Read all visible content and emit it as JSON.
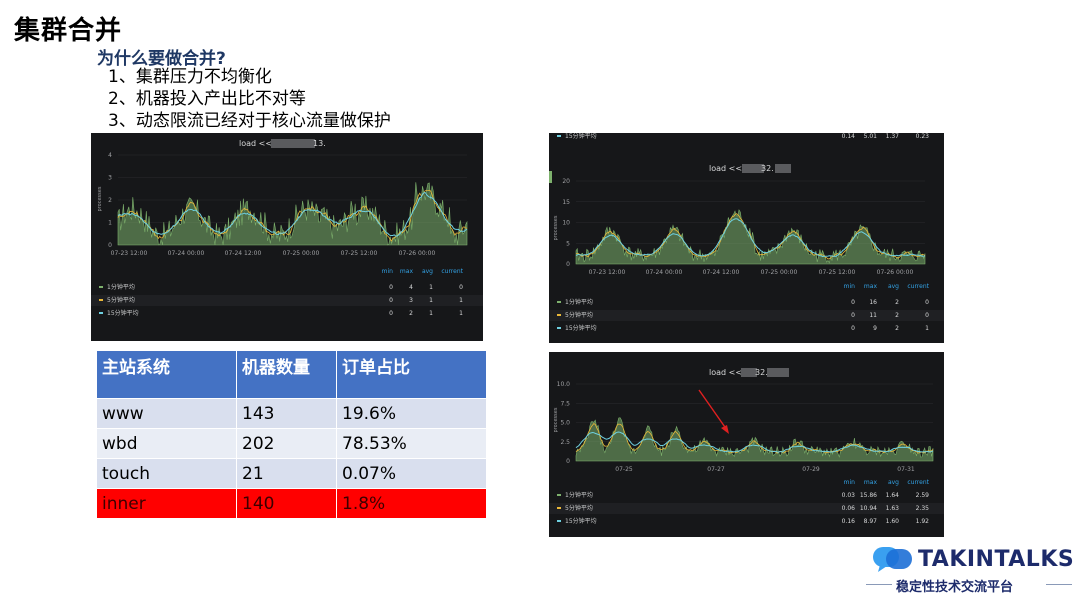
{
  "slide": {
    "title": "集群合并",
    "question": "为什么要做合并?",
    "reasons": [
      "1、集群压力不均衡化",
      "2、机器投入产出比不对等",
      "3、动态限流已经对于核心流量做保护"
    ]
  },
  "panels": [
    {
      "title": "load <<",
      "title_suffix": "13.",
      "ylabel": "processes",
      "yticks": [
        "4",
        "3",
        "2",
        "1",
        "0"
      ],
      "xticks": [
        "07-23 12:00",
        "07-24 00:00",
        "07-24 12:00",
        "07-25 00:00",
        "07-25 12:00",
        "07-26 00:00"
      ],
      "legend_headers": [
        "min",
        "max",
        "avg",
        "current"
      ],
      "legend": [
        {
          "name": "1分钟平均",
          "color": "#7eb26d",
          "values": [
            "0",
            "4",
            "1",
            "0"
          ]
        },
        {
          "name": "5分钟平均",
          "color": "#eab839",
          "values": [
            "0",
            "3",
            "1",
            "1"
          ]
        },
        {
          "name": "15分钟平均",
          "color": "#6ed0e0",
          "values": [
            "0",
            "2",
            "1",
            "1"
          ]
        }
      ]
    },
    {
      "title": "load <<",
      "title_suffix": "32.",
      "ylabel": "processes",
      "top_partial": {
        "name": "15分钟平均",
        "values": [
          "0.14",
          "5.01",
          "1.37",
          "0.23"
        ]
      },
      "yticks": [
        "20",
        "15",
        "10",
        "5",
        "0"
      ],
      "xticks": [
        "07-23 12:00",
        "07-24 00:00",
        "07-24 12:00",
        "07-25 00:00",
        "07-25 12:00",
        "07-26 00:00"
      ],
      "legend_headers": [
        "min",
        "max",
        "avg",
        "current"
      ],
      "legend": [
        {
          "name": "1分钟平均",
          "color": "#7eb26d",
          "values": [
            "0",
            "16",
            "2",
            "0"
          ]
        },
        {
          "name": "5分钟平均",
          "color": "#eab839",
          "values": [
            "0",
            "11",
            "2",
            "0"
          ]
        },
        {
          "name": "15分钟平均",
          "color": "#6ed0e0",
          "values": [
            "0",
            "9",
            "2",
            "1"
          ]
        }
      ]
    },
    {
      "title": "load <<",
      "title_suffix": "32.",
      "ylabel": "processes",
      "yticks": [
        "10.0",
        "7.5",
        "5.0",
        "2.5",
        "0"
      ],
      "xticks": [
        "07-25",
        "07-27",
        "07-29",
        "07-31"
      ],
      "legend_headers": [
        "min",
        "max",
        "avg",
        "current"
      ],
      "legend": [
        {
          "name": "1分钟平均",
          "color": "#7eb26d",
          "values": [
            "0.03",
            "15.86",
            "1.64",
            "2.59"
          ]
        },
        {
          "name": "5分钟平均",
          "color": "#eab839",
          "values": [
            "0.06",
            "10.94",
            "1.63",
            "2.35"
          ]
        },
        {
          "name": "15分钟平均",
          "color": "#6ed0e0",
          "values": [
            "0.16",
            "8.97",
            "1.60",
            "1.92"
          ]
        }
      ]
    }
  ],
  "table": {
    "headers": [
      "主站系统",
      "机器数量",
      "订单占比"
    ],
    "rows": [
      [
        "www",
        "143",
        "19.6%"
      ],
      [
        "wbd",
        "202",
        "78.53%"
      ],
      [
        "touch",
        "21",
        "0.07%"
      ],
      [
        "inner",
        "140",
        "1.8%"
      ]
    ],
    "highlight_color": "#ff0000",
    "header_color": "#4472c4"
  },
  "brand": {
    "name": "TAKINTALKS",
    "subtitle": "稳定性技术交流平台",
    "logo_icon": "chat-bubble-icon"
  }
}
